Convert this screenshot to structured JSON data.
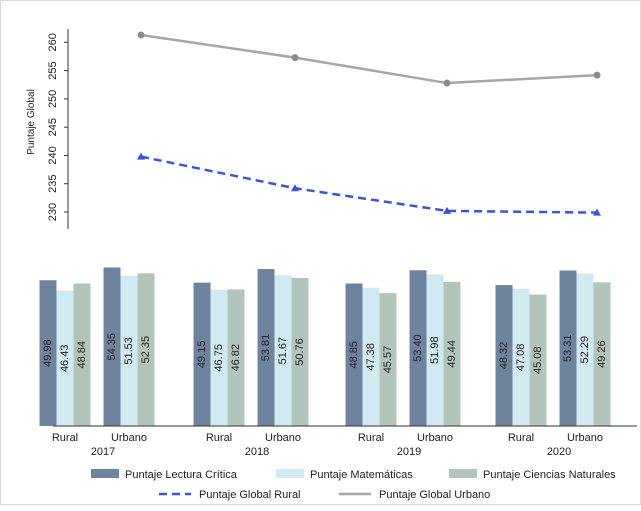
{
  "chart_data": [
    {
      "type": "line",
      "ylabel": "Puntaje Global",
      "yticks": [
        230,
        235,
        240,
        245,
        250,
        255,
        260
      ],
      "ylim": [
        227,
        262
      ],
      "x": [
        2017,
        2018,
        2019,
        2020
      ],
      "series": [
        {
          "name": "Puntaje Global Rural",
          "values": [
            239.8,
            234.2,
            230.2,
            229.9
          ],
          "color": "#3a53e0",
          "style": "dashed",
          "marker": "triangle"
        },
        {
          "name": "Puntaje Global Urbano",
          "values": [
            261.3,
            257.3,
            252.8,
            254.2
          ],
          "color": "#a6a6a6",
          "style": "solid",
          "marker": "circle"
        }
      ]
    },
    {
      "type": "bar",
      "years": [
        "2017",
        "2018",
        "2019",
        "2020"
      ],
      "zones": [
        "Rural",
        "Urbano"
      ],
      "ylim": [
        0,
        60
      ],
      "series": [
        {
          "name": "Puntaje Lectura Crítica",
          "color": "#6e849e",
          "values": [
            [
              "49.98",
              "54.35"
            ],
            [
              "49.15",
              "53.81"
            ],
            [
              "48.85",
              "53.40"
            ],
            [
              "48.32",
              "53.31"
            ]
          ]
        },
        {
          "name": "Puntaje Matemáticas",
          "color": "#d1eaf2",
          "values": [
            [
              "46.43",
              "51.53"
            ],
            [
              "46.75",
              "51.67"
            ],
            [
              "47.38",
              "51.98"
            ],
            [
              "47.08",
              "52.29"
            ]
          ]
        },
        {
          "name": "Puntaje Ciencias Naturales",
          "color": "#b2c5bb",
          "values": [
            [
              "48.84",
              "52.35"
            ],
            [
              "46.82",
              "50.76"
            ],
            [
              "45.57",
              "49.44"
            ],
            [
              "45.08",
              "49.26"
            ]
          ]
        }
      ]
    }
  ]
}
